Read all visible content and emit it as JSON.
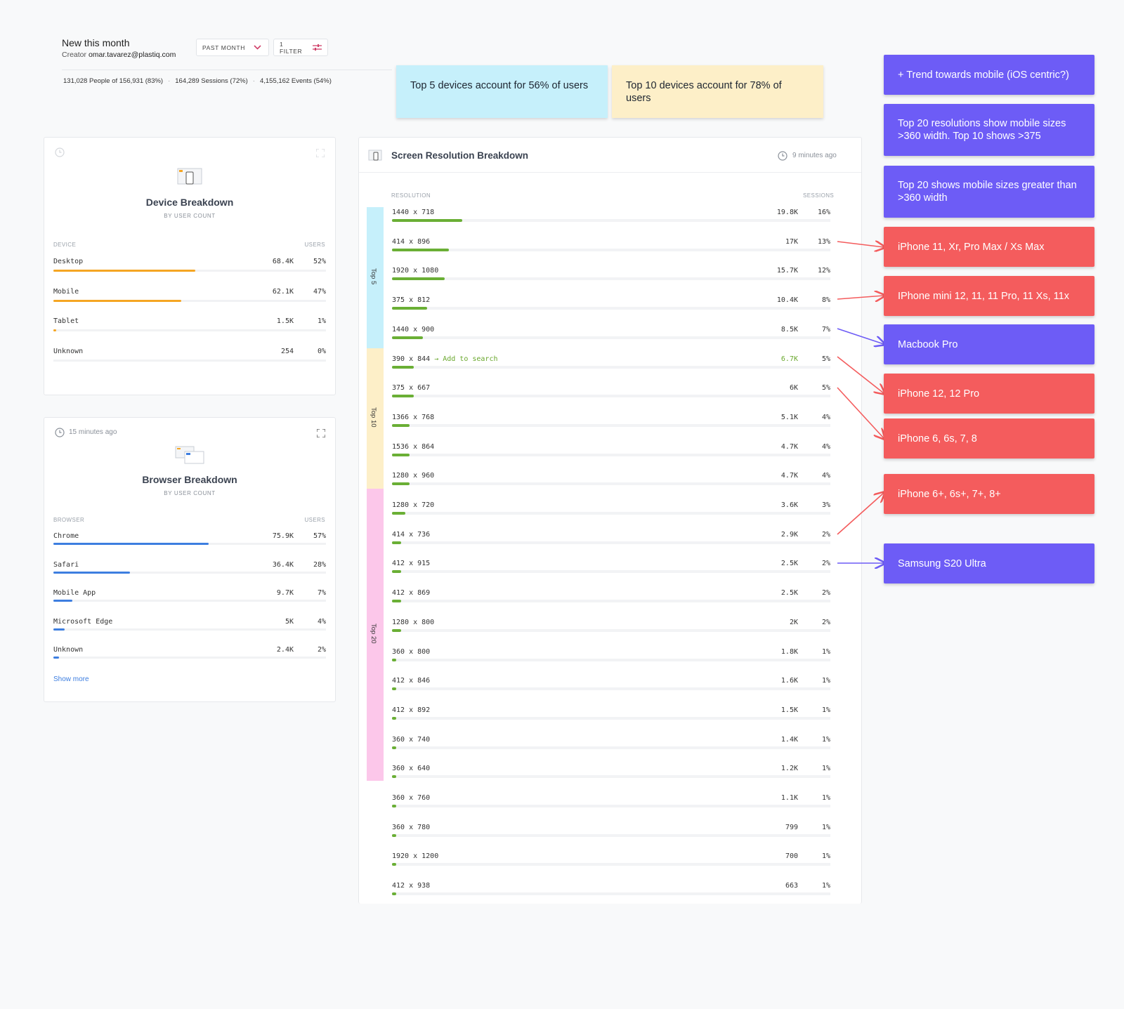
{
  "header": {
    "title": "New this month",
    "creator_label": "Creator",
    "creator_email": "omar.tavarez@plastiq.com",
    "time_filter": "PAST MONTH",
    "filter_count": "1 FILTER",
    "stats": {
      "people": "131,028 People of 156,931 (83%)",
      "sessions": "164,289 Sessions (72%)",
      "events": "4,155,162 Events (54%)"
    }
  },
  "stickies": {
    "top5": "Top 5 devices account for 56% of users",
    "top10": "Top 10 devices account for 78% of users"
  },
  "device_panel": {
    "title": "Device Breakdown",
    "subtitle": "BY USER COUNT",
    "col_left": "DEVICE",
    "col_right": "USERS",
    "accent": "#f5a623",
    "rows": [
      {
        "name": "Desktop",
        "value": "68.4K",
        "pct": "52%",
        "share": 52
      },
      {
        "name": "Mobile",
        "value": "62.1K",
        "pct": "47%",
        "share": 47
      },
      {
        "name": "Tablet",
        "value": "1.5K",
        "pct": "1%",
        "share": 1
      },
      {
        "name": "Unknown",
        "value": "254",
        "pct": "0%",
        "share": 0
      }
    ]
  },
  "browser_panel": {
    "updated": "15 minutes ago",
    "title": "Browser Breakdown",
    "subtitle": "BY USER COUNT",
    "col_left": "BROWSER",
    "col_right": "USERS",
    "accent": "#3d7ee0",
    "show_more": "Show more",
    "rows": [
      {
        "name": "Chrome",
        "value": "75.9K",
        "pct": "57%",
        "share": 57
      },
      {
        "name": "Safari",
        "value": "36.4K",
        "pct": "28%",
        "share": 28
      },
      {
        "name": "Mobile App",
        "value": "9.7K",
        "pct": "7%",
        "share": 7
      },
      {
        "name": "Microsoft Edge",
        "value": "5K",
        "pct": "4%",
        "share": 4
      },
      {
        "name": "Unknown",
        "value": "2.4K",
        "pct": "2%",
        "share": 2
      }
    ]
  },
  "resolution_panel": {
    "title": "Screen Resolution Breakdown",
    "updated": "9 minutes ago",
    "col_left": "RESOLUTION",
    "col_right": "SESSIONS",
    "add_to_search": "→ Add to search",
    "bands": [
      {
        "label": "Top 5",
        "color": "#c6f0fb"
      },
      {
        "label": "Top 10",
        "color": "#fdefc8"
      },
      {
        "label": "Top 20",
        "color": "#fcc7ea"
      }
    ],
    "rows": [
      {
        "name": "1440 x 718",
        "value": "19.8K",
        "pct": "16%",
        "share": 16
      },
      {
        "name": "414 x 896",
        "value": "17K",
        "pct": "13%",
        "share": 13
      },
      {
        "name": "1920 x 1080",
        "value": "15.7K",
        "pct": "12%",
        "share": 12
      },
      {
        "name": "375 x 812",
        "value": "10.4K",
        "pct": "8%",
        "share": 8
      },
      {
        "name": "1440 x 900",
        "value": "8.5K",
        "pct": "7%",
        "share": 7
      },
      {
        "name": "390 x 844",
        "value": "6.7K",
        "pct": "5%",
        "share": 5,
        "hover": true
      },
      {
        "name": "375 x 667",
        "value": "6K",
        "pct": "5%",
        "share": 5
      },
      {
        "name": "1366 x 768",
        "value": "5.1K",
        "pct": "4%",
        "share": 4
      },
      {
        "name": "1536 x 864",
        "value": "4.7K",
        "pct": "4%",
        "share": 4
      },
      {
        "name": "1280 x 960",
        "value": "4.7K",
        "pct": "4%",
        "share": 4
      },
      {
        "name": "1280 x 720",
        "value": "3.6K",
        "pct": "3%",
        "share": 3
      },
      {
        "name": "414 x 736",
        "value": "2.9K",
        "pct": "2%",
        "share": 2
      },
      {
        "name": "412 x 915",
        "value": "2.5K",
        "pct": "2%",
        "share": 2
      },
      {
        "name": "412 x 869",
        "value": "2.5K",
        "pct": "2%",
        "share": 2
      },
      {
        "name": "1280 x 800",
        "value": "2K",
        "pct": "2%",
        "share": 2
      },
      {
        "name": "360 x 800",
        "value": "1.8K",
        "pct": "1%",
        "share": 1
      },
      {
        "name": "412 x 846",
        "value": "1.6K",
        "pct": "1%",
        "share": 1
      },
      {
        "name": "412 x 892",
        "value": "1.5K",
        "pct": "1%",
        "share": 1
      },
      {
        "name": "360 x 740",
        "value": "1.4K",
        "pct": "1%",
        "share": 1
      },
      {
        "name": "360 x 640",
        "value": "1.2K",
        "pct": "1%",
        "share": 1
      },
      {
        "name": "360 x 760",
        "value": "1.1K",
        "pct": "1%",
        "share": 1
      },
      {
        "name": "360 x 780",
        "value": "799",
        "pct": "1%",
        "share": 1
      },
      {
        "name": "1920 x 1200",
        "value": "700",
        "pct": "1%",
        "share": 1
      },
      {
        "name": "412 x 938",
        "value": "663",
        "pct": "1%",
        "share": 1
      }
    ]
  },
  "annotations": [
    {
      "text": "+ Trend towards mobile (iOS centric?)",
      "color": "purple"
    },
    {
      "text": "Top 20 resolutions show mobile sizes >360 width. Top 10 shows >375",
      "color": "purple"
    },
    {
      "text": "Top 20 shows mobile sizes greater than >360 width",
      "color": "purple"
    },
    {
      "text": "iPhone 11, Xr, Pro Max / Xs Max",
      "color": "red"
    },
    {
      "text": "IPhone mini 12, 11, 11 Pro, 11 Xs, 11x",
      "color": "red"
    },
    {
      "text": "Macbook Pro",
      "color": "purple"
    },
    {
      "text": "iPhone 12, 12 Pro",
      "color": "red"
    },
    {
      "text": "iPhone 6, 6s, 7, 8",
      "color": "red"
    },
    {
      "text": "iPhone 6+, 6s+, 7+, 8+",
      "color": "red"
    },
    {
      "text": "Samsung S20 Ultra",
      "color": "purple"
    }
  ]
}
